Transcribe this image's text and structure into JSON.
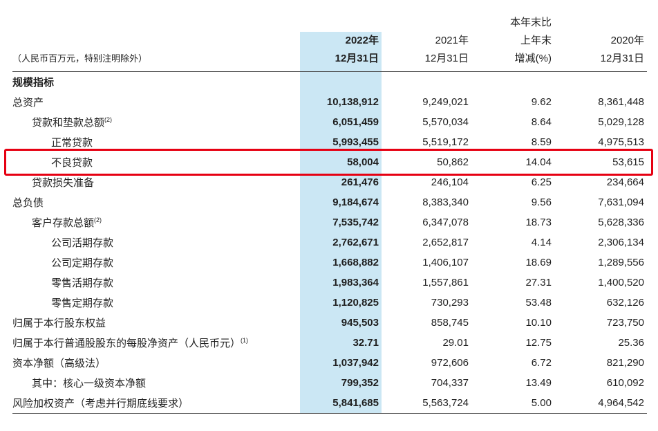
{
  "page": {
    "highlight_color": "#cbe7f4",
    "annotation_color": "#e60012"
  },
  "table": {
    "unit_note": "（人民币百万元，特别注明除外）",
    "section": "规模指标",
    "columns": [
      {
        "lines": [
          "2022年",
          "12月31日"
        ],
        "bold": true,
        "highlight": true
      },
      {
        "lines": [
          "2021年",
          "12月31日"
        ],
        "bold": false,
        "highlight": false
      },
      {
        "lines": [
          "本年末比",
          "上年末",
          "增减(%)"
        ],
        "bold": false,
        "highlight": false
      },
      {
        "lines": [
          "2020年",
          "12月31日"
        ],
        "bold": false,
        "highlight": false
      }
    ],
    "rows": [
      {
        "label": "总资产",
        "sup": "",
        "indent": 0,
        "annotated": false,
        "values": [
          "10,138,912",
          "9,249,021",
          "9.62",
          "8,361,448"
        ]
      },
      {
        "label": "贷款和垫款总额",
        "sup": "(2)",
        "indent": 1,
        "annotated": false,
        "values": [
          "6,051,459",
          "5,570,034",
          "8.64",
          "5,029,128"
        ]
      },
      {
        "label": "正常贷款",
        "sup": "",
        "indent": 2,
        "annotated": false,
        "values": [
          "5,993,455",
          "5,519,172",
          "8.59",
          "4,975,513"
        ]
      },
      {
        "label": "不良贷款",
        "sup": "",
        "indent": 2,
        "annotated": true,
        "values": [
          "58,004",
          "50,862",
          "14.04",
          "53,615"
        ]
      },
      {
        "label": "贷款损失准备",
        "sup": "",
        "indent": 1,
        "annotated": false,
        "values": [
          "261,476",
          "246,104",
          "6.25",
          "234,664"
        ]
      },
      {
        "label": "总负债",
        "sup": "",
        "indent": 0,
        "annotated": false,
        "values": [
          "9,184,674",
          "8,383,340",
          "9.56",
          "7,631,094"
        ]
      },
      {
        "label": "客户存款总额",
        "sup": "(2)",
        "indent": 1,
        "annotated": false,
        "values": [
          "7,535,742",
          "6,347,078",
          "18.73",
          "5,628,336"
        ]
      },
      {
        "label": "公司活期存款",
        "sup": "",
        "indent": 2,
        "annotated": false,
        "values": [
          "2,762,671",
          "2,652,817",
          "4.14",
          "2,306,134"
        ]
      },
      {
        "label": "公司定期存款",
        "sup": "",
        "indent": 2,
        "annotated": false,
        "values": [
          "1,668,882",
          "1,406,107",
          "18.69",
          "1,289,556"
        ]
      },
      {
        "label": "零售活期存款",
        "sup": "",
        "indent": 2,
        "annotated": false,
        "values": [
          "1,983,364",
          "1,557,861",
          "27.31",
          "1,400,520"
        ]
      },
      {
        "label": "零售定期存款",
        "sup": "",
        "indent": 2,
        "annotated": false,
        "values": [
          "1,120,825",
          "730,293",
          "53.48",
          "632,126"
        ]
      },
      {
        "label": "归属于本行股东权益",
        "sup": "",
        "indent": 0,
        "annotated": false,
        "values": [
          "945,503",
          "858,745",
          "10.10",
          "723,750"
        ]
      },
      {
        "label": "归属于本行普通股股东的每股净资产（人民币元）",
        "sup": "(1)",
        "indent": 0,
        "annotated": false,
        "values": [
          "32.71",
          "29.01",
          "12.75",
          "25.36"
        ]
      },
      {
        "label": "资本净额（高级法）",
        "sup": "",
        "indent": 0,
        "annotated": false,
        "values": [
          "1,037,942",
          "972,606",
          "6.72",
          "821,290"
        ]
      },
      {
        "label": "其中：核心一级资本净额",
        "sup": "",
        "indent": 1,
        "annotated": false,
        "values": [
          "799,352",
          "704,337",
          "13.49",
          "610,092"
        ]
      },
      {
        "label": "风险加权资产（考虑并行期底线要求）",
        "sup": "",
        "indent": 0,
        "annotated": false,
        "values": [
          "5,841,685",
          "5,563,724",
          "5.00",
          "4,964,542"
        ]
      }
    ]
  }
}
